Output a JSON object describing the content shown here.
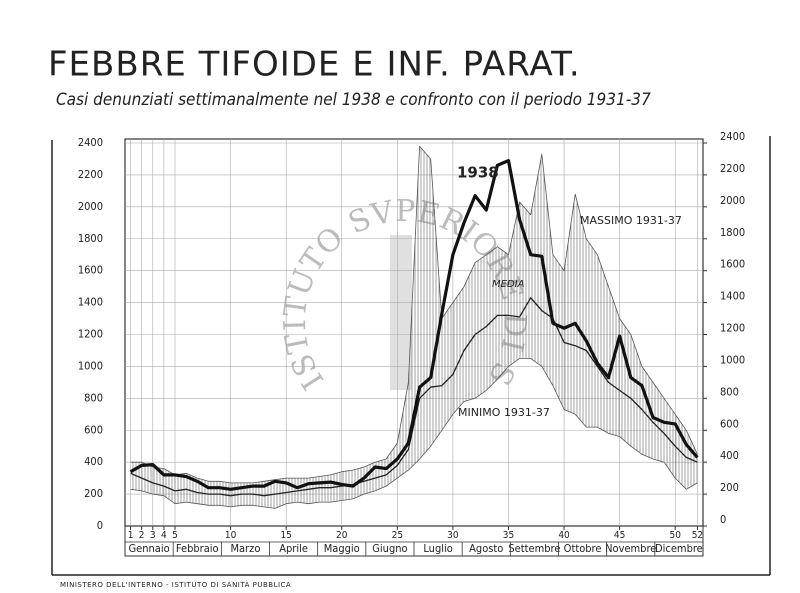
{
  "chart_data": {
    "type": "line",
    "title": "FEBBRE TIFOIDE E INF. PARAT.",
    "subtitle": "Casi denunziati settimanalmente nel 1938 e confronto con il periodo 1931-37",
    "footer": "MINISTERO DELL'INTERNO - ISTITUTO DI SANITÀ PUBBLICA",
    "watermark": "ISTITUTO SVPERIORE DI SANITÀ",
    "x": [
      1,
      2,
      3,
      4,
      5,
      6,
      7,
      8,
      9,
      10,
      11,
      12,
      13,
      14,
      15,
      16,
      17,
      18,
      19,
      20,
      21,
      22,
      23,
      24,
      25,
      26,
      27,
      28,
      29,
      30,
      31,
      32,
      33,
      34,
      35,
      36,
      37,
      38,
      39,
      40,
      41,
      42,
      43,
      44,
      45,
      46,
      47,
      48,
      49,
      50,
      51,
      52
    ],
    "xlim": [
      0.5,
      52.5
    ],
    "xticks": [
      1,
      2,
      3,
      4,
      5,
      10,
      15,
      20,
      25,
      30,
      35,
      40,
      45,
      50,
      52
    ],
    "months": [
      "Gennaio",
      "Febbraio",
      "Marzo",
      "Aprile",
      "Maggio",
      "Giugno",
      "Luglio",
      "Agosto",
      "Settembre",
      "Ottobre",
      "Novembre",
      "Dicembre"
    ],
    "ylim": [
      0,
      2400
    ],
    "yticks": [
      0,
      200,
      400,
      600,
      800,
      1000,
      1200,
      1400,
      1600,
      1800,
      2000,
      2200,
      2400
    ],
    "y2lim": [
      0,
      2400
    ],
    "y2ticks": [
      0,
      200,
      400,
      600,
      800,
      1000,
      1200,
      1400,
      1600,
      1800,
      2000,
      2200,
      2400
    ],
    "grid": true,
    "series": [
      {
        "name": "1938",
        "color": "#111111",
        "values": [
          340,
          380,
          385,
          320,
          320,
          310,
          280,
          240,
          240,
          230,
          240,
          250,
          250,
          280,
          270,
          240,
          265,
          270,
          275,
          260,
          250,
          300,
          370,
          360,
          420,
          520,
          870,
          930,
          1330,
          1700,
          1900,
          2070,
          1980,
          2260,
          2290,
          1920,
          1700,
          1690,
          1270,
          1240,
          1270,
          1160,
          1020,
          930,
          1190,
          930,
          880,
          680,
          650,
          640,
          510,
          430
        ]
      },
      {
        "name": "MEDIA",
        "color": "#222222",
        "values": [
          330,
          300,
          270,
          250,
          220,
          230,
          210,
          200,
          200,
          190,
          200,
          200,
          190,
          200,
          210,
          220,
          230,
          240,
          240,
          250,
          260,
          280,
          300,
          320,
          380,
          480,
          800,
          870,
          880,
          950,
          1100,
          1200,
          1250,
          1320,
          1320,
          1310,
          1430,
          1350,
          1300,
          1150,
          1130,
          1100,
          1000,
          900,
          850,
          800,
          730,
          650,
          580,
          500,
          430,
          400
        ]
      },
      {
        "name": "MASSIMO 1931-37",
        "color": "#555555",
        "values": [
          400,
          400,
          370,
          360,
          320,
          330,
          300,
          280,
          280,
          270,
          270,
          270,
          280,
          290,
          300,
          300,
          300,
          310,
          320,
          340,
          350,
          370,
          400,
          420,
          520,
          900,
          2380,
          2300,
          1300,
          1400,
          1500,
          1650,
          1700,
          1750,
          1700,
          2030,
          1950,
          2330,
          1700,
          1600,
          2080,
          1800,
          1700,
          1500,
          1300,
          1200,
          1000,
          900,
          800,
          700,
          600,
          450
        ]
      },
      {
        "name": "MINIMO 1931-37",
        "color": "#555555",
        "values": [
          230,
          220,
          200,
          190,
          140,
          150,
          140,
          130,
          130,
          120,
          130,
          130,
          120,
          110,
          140,
          150,
          140,
          150,
          150,
          160,
          170,
          200,
          220,
          250,
          300,
          350,
          420,
          500,
          600,
          700,
          780,
          800,
          850,
          920,
          1000,
          1050,
          1050,
          1000,
          880,
          730,
          700,
          620,
          620,
          580,
          560,
          500,
          450,
          420,
          400,
          300,
          230,
          270
        ]
      }
    ]
  }
}
